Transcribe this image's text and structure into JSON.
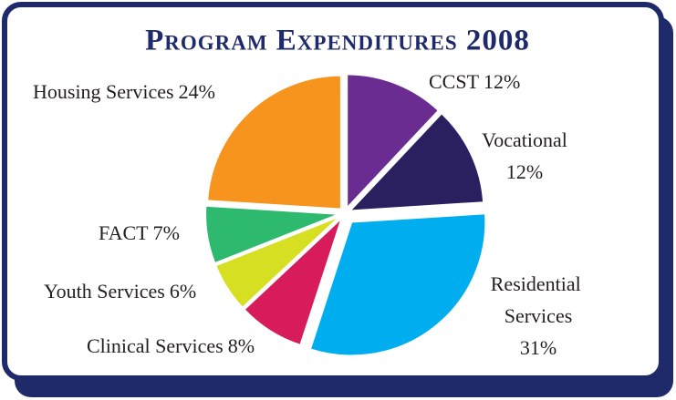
{
  "chart_data": {
    "type": "pie",
    "title": "Program Expenditures 2008",
    "categories": [
      "CCST",
      "Vocational",
      "Residential Services",
      "Clinical Services",
      "Youth Services",
      "FACT",
      "Housing Services"
    ],
    "values": [
      12,
      12,
      31,
      8,
      6,
      7,
      24
    ],
    "value_labels": [
      "12%",
      "12%",
      "31%",
      "8%",
      "6%",
      "7%",
      "24%"
    ],
    "colors": [
      "#6a2c91",
      "#2a2060",
      "#00aeef",
      "#d81b5a",
      "#d7df23",
      "#2dba6f",
      "#f7941d"
    ]
  }
}
